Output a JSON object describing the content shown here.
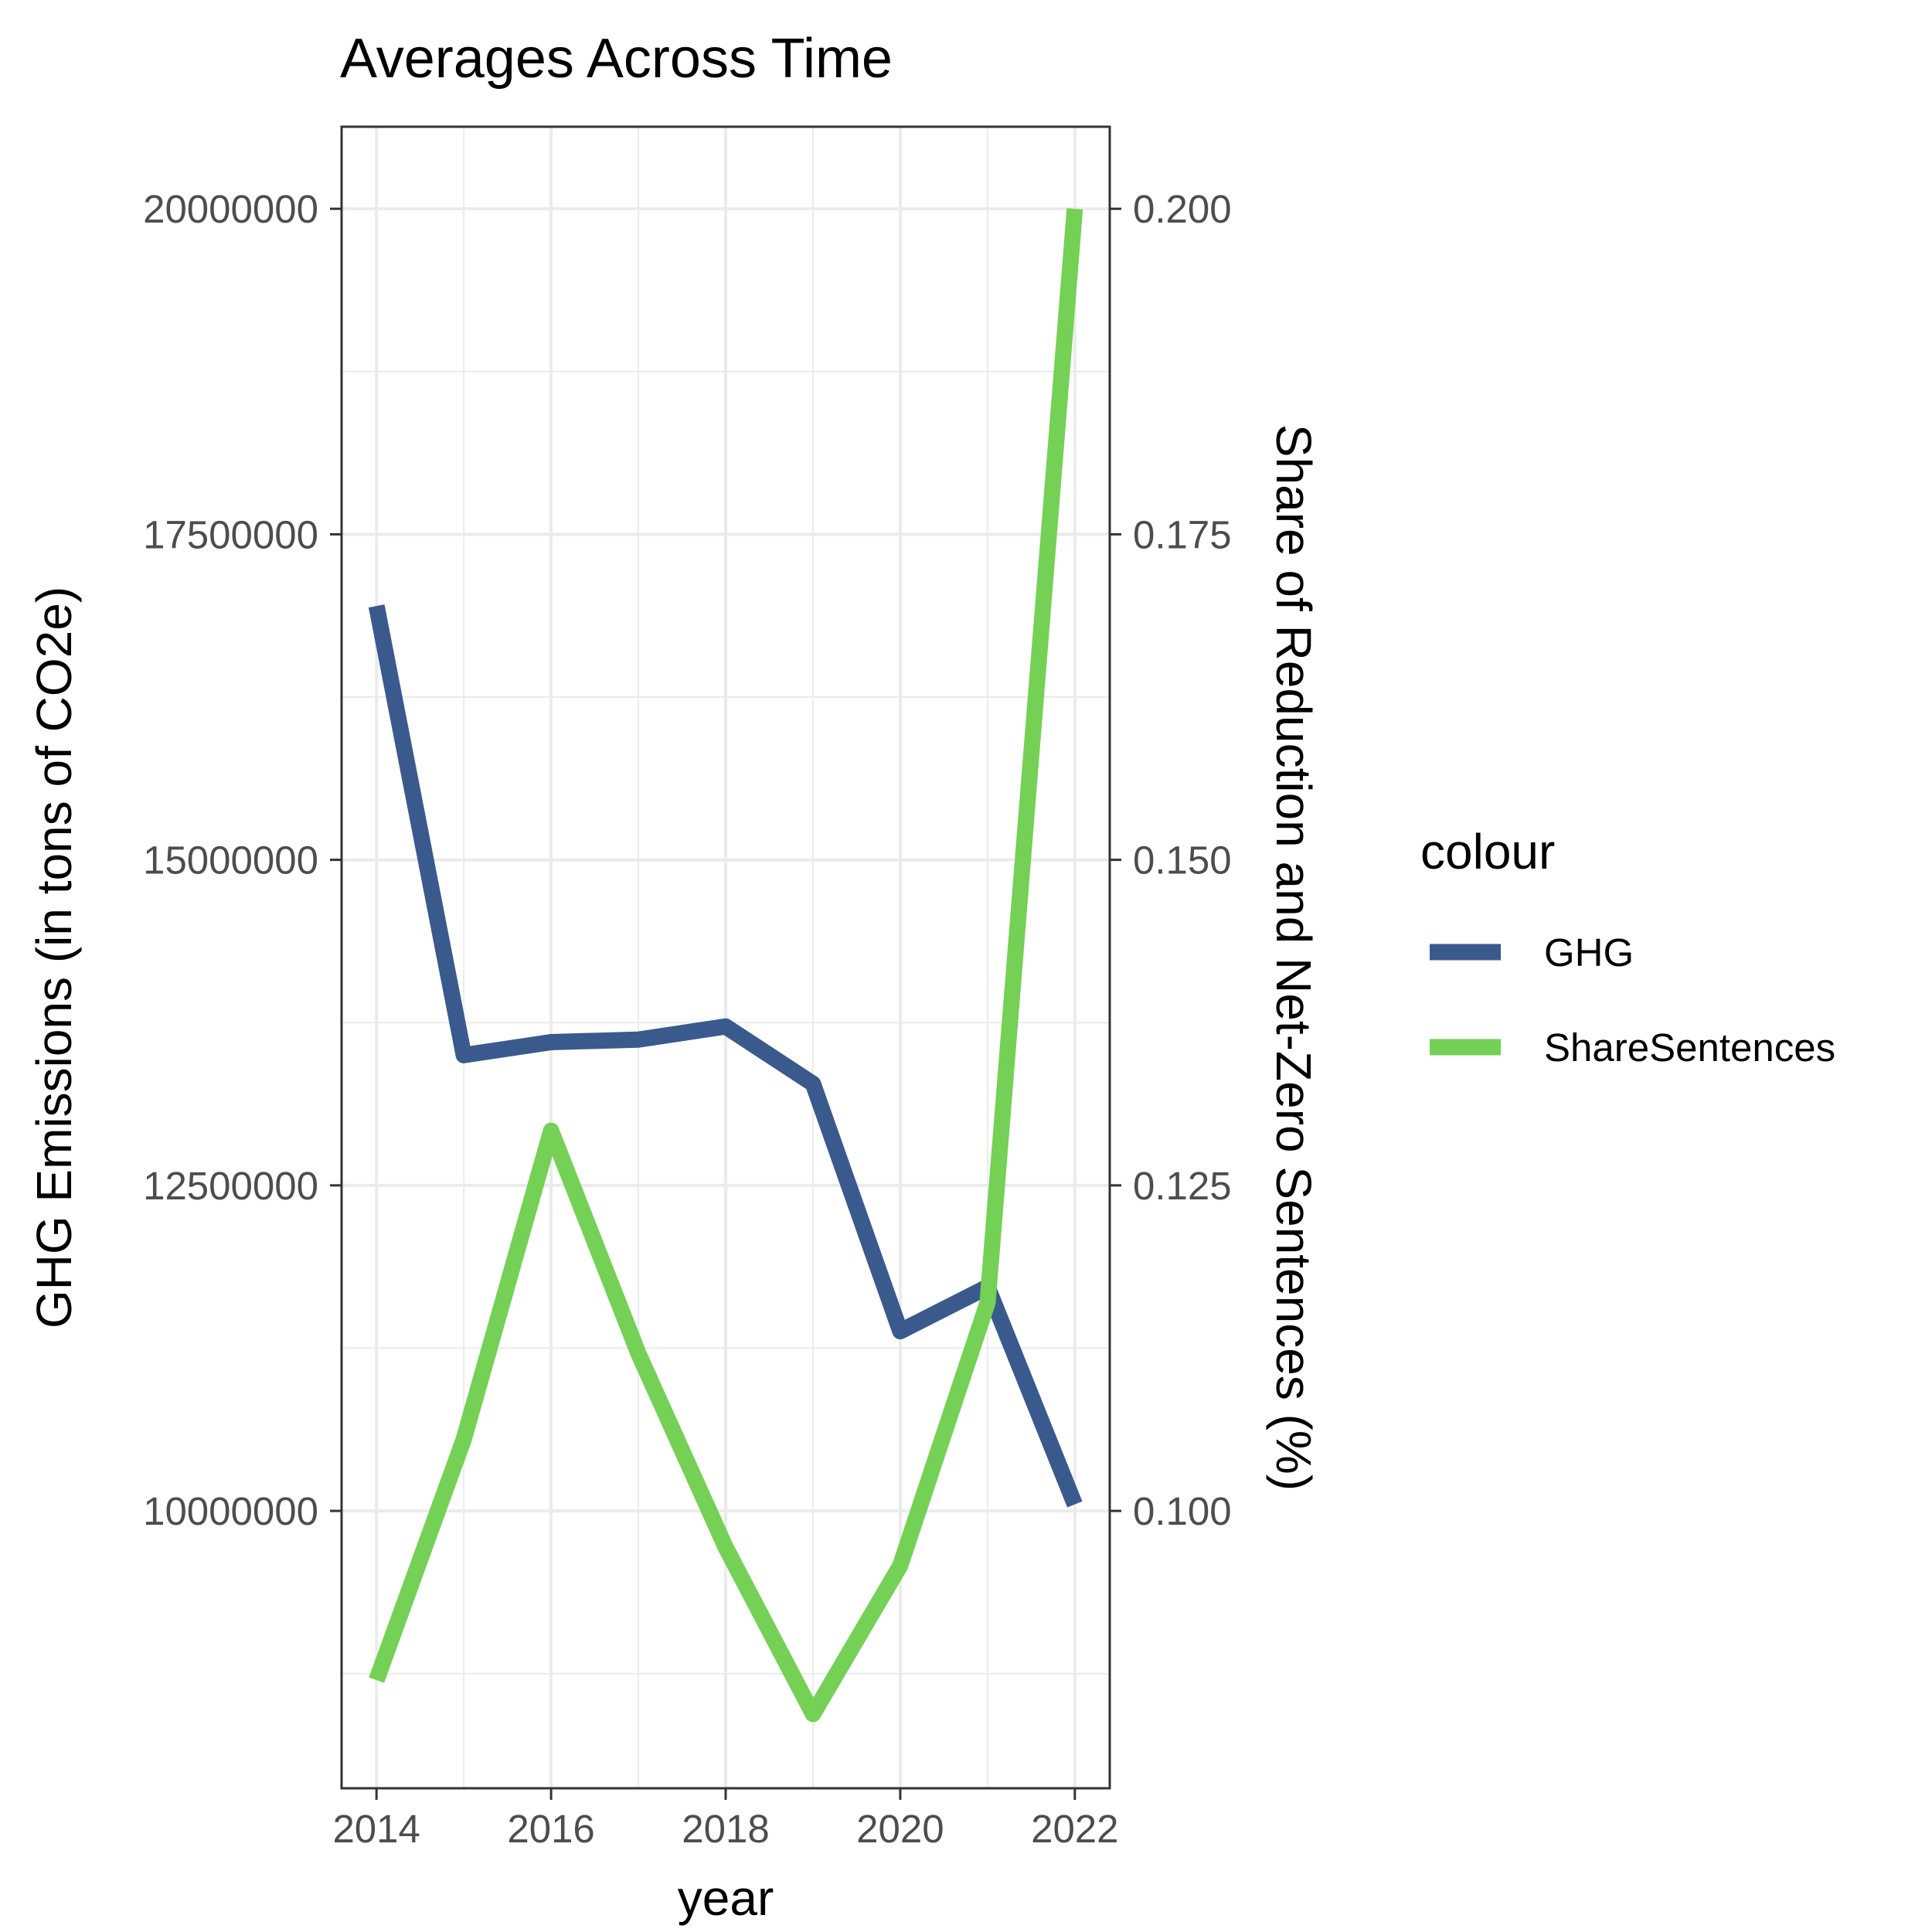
{
  "chart_data": {
    "type": "line",
    "title": "Averages Across Time",
    "xlabel": "year",
    "ylabel": "GHG Emissions (in tons of CO2e)",
    "y2label": "Share of Reduction and Net-Zero Sentences (%)",
    "x": [
      2014,
      2015,
      2016,
      2017,
      2018,
      2019,
      2020,
      2021,
      2022
    ],
    "xlim": [
      2013.6,
      2022.4
    ],
    "ylim": [
      7870000,
      20630000
    ],
    "y2lim": [
      0.0787,
      0.2063
    ],
    "x_ticks": [
      2014,
      2016,
      2018,
      2020,
      2022
    ],
    "x_tick_labels": [
      "2014",
      "2016",
      "2018",
      "2020",
      "2022"
    ],
    "y_ticks": [
      10000000,
      12500000,
      15000000,
      17500000,
      20000000
    ],
    "y_tick_labels": [
      "10000000",
      "12500000",
      "15000000",
      "17500000",
      "20000000"
    ],
    "y2_ticks": [
      0.1,
      0.125,
      0.15,
      0.175,
      0.2
    ],
    "y2_tick_labels": [
      "0.100",
      "0.125",
      "0.150",
      "0.175",
      "0.200"
    ],
    "grid": true,
    "legend": {
      "title": "colour",
      "position": "right"
    },
    "series": [
      {
        "name": "GHG",
        "axis": "left",
        "color": "#3a5a8e",
        "values": [
          16950000,
          13500000,
          13600000,
          13620000,
          13720000,
          13280000,
          11380000,
          11720000,
          10050000
        ]
      },
      {
        "name": "ShareSentences",
        "axis": "right",
        "color": "#74d155",
        "values": [
          0.087,
          0.1055,
          0.1292,
          0.1121,
          0.0972,
          0.0844,
          0.0958,
          0.116,
          0.2
        ]
      }
    ]
  }
}
